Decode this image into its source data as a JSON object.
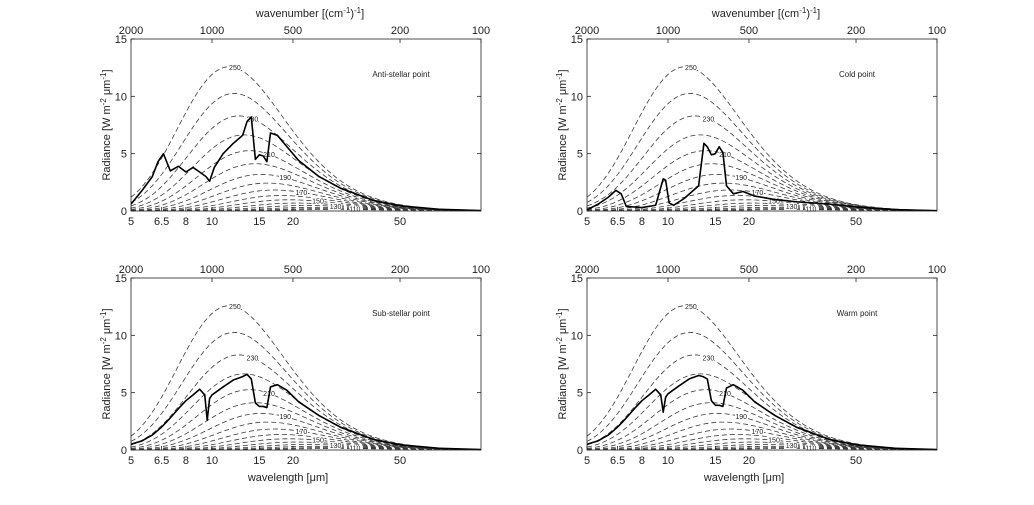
{
  "figure": {
    "colors": {
      "axis": "#222222",
      "bb": "#3a3a3a",
      "spectrum": "#000000"
    },
    "top_axis_label_prefix": "wavenumber [(cm",
    "top_axis_label_sup": "-1",
    "top_axis_label_mid": ")",
    "top_axis_label_sup2": "-1",
    "top_axis_label_suffix": "]",
    "x_axis_label_prefix": "wavelength [",
    "x_axis_label_mu": "μ",
    "x_axis_label_suffix": "m]",
    "y_axis_label_prefix": "Radiance [W m",
    "y_axis_label_sup1": "-2",
    "y_axis_label_mu": " μm",
    "y_axis_label_sup2": "-1",
    "y_axis_label_suffix": "]"
  },
  "chart_data": [
    {
      "type": "line",
      "title": "Anti-stellar point",
      "xscale": "log",
      "xlim": [
        5,
        100
      ],
      "ylim": [
        0,
        15
      ],
      "xticks": [
        5,
        6.5,
        8,
        10,
        15,
        20,
        50
      ],
      "xtick_labels": [
        "5",
        "6.5",
        "8",
        "10",
        "15",
        "20",
        "50"
      ],
      "yticks": [
        0,
        5,
        10,
        15
      ],
      "ytick_labels": [
        "0",
        "5",
        "10",
        "15"
      ],
      "top_ticks_wavenumber": [
        2000,
        1000,
        500,
        200,
        100
      ],
      "top_tick_labels": [
        "2000",
        "1000",
        "500",
        "200",
        "100"
      ],
      "blackbody_temperatures_K": [
        250,
        240,
        230,
        220,
        210,
        200,
        190,
        180,
        170,
        160,
        150,
        140,
        130,
        120,
        110,
        100
      ],
      "blackbody_labels": [
        "250",
        "230",
        "210",
        "190",
        "170",
        "150",
        "130",
        "110"
      ],
      "series": [
        {
          "name": "spectrum",
          "x": [
            5.0,
            5.5,
            6.0,
            6.3,
            6.6,
            7.0,
            7.5,
            8.0,
            8.5,
            9.0,
            9.5,
            9.8,
            10.2,
            11.0,
            12.0,
            13.0,
            13.5,
            14.0,
            14.5,
            15.0,
            15.5,
            16.0,
            16.5,
            17.5,
            19.0,
            21.0,
            25.0,
            30.0,
            40.0,
            50.0,
            70.0,
            100.0
          ],
          "y": [
            0.6,
            1.8,
            3.0,
            4.3,
            5.0,
            3.5,
            3.9,
            3.4,
            3.8,
            3.4,
            3.0,
            2.6,
            3.8,
            5.0,
            5.9,
            6.6,
            7.8,
            8.2,
            4.5,
            4.9,
            4.8,
            4.3,
            6.8,
            6.6,
            5.6,
            4.4,
            3.0,
            2.0,
            0.9,
            0.45,
            0.15,
            0.04
          ]
        }
      ]
    },
    {
      "type": "line",
      "title": "Cold point",
      "xscale": "log",
      "xlim": [
        5,
        100
      ],
      "ylim": [
        0,
        15
      ],
      "xticks": [
        5,
        6.5,
        8,
        10,
        15,
        20,
        50
      ],
      "xtick_labels": [
        "5",
        "6.5",
        "8",
        "10",
        "15",
        "20",
        "50"
      ],
      "yticks": [
        0,
        5,
        10,
        15
      ],
      "ytick_labels": [
        "0",
        "5",
        "10",
        "15"
      ],
      "top_ticks_wavenumber": [
        2000,
        1000,
        500,
        200,
        100
      ],
      "top_tick_labels": [
        "2000",
        "1000",
        "500",
        "200",
        "100"
      ],
      "blackbody_temperatures_K": [
        250,
        240,
        230,
        220,
        210,
        200,
        190,
        180,
        170,
        160,
        150,
        140,
        130,
        120,
        110,
        100
      ],
      "blackbody_labels": [
        "250",
        "230",
        "210",
        "190",
        "170",
        "150",
        "130",
        "110"
      ],
      "series": [
        {
          "name": "spectrum",
          "x": [
            5.0,
            5.5,
            6.0,
            6.4,
            6.7,
            7.0,
            8.0,
            9.0,
            9.6,
            9.8,
            10.1,
            10.5,
            11.5,
            13.0,
            13.6,
            14.0,
            14.5,
            15.0,
            15.5,
            16.0,
            16.5,
            17.5,
            19.0,
            21.0,
            25.0,
            30.0,
            40.0,
            50.0,
            70.0,
            100.0
          ],
          "y": [
            0.1,
            0.6,
            1.2,
            1.8,
            1.5,
            0.4,
            0.3,
            0.5,
            2.8,
            2.7,
            0.7,
            0.5,
            1.1,
            2.2,
            5.9,
            5.6,
            4.9,
            5.0,
            5.6,
            5.1,
            2.2,
            1.5,
            1.7,
            1.3,
            1.0,
            0.8,
            0.6,
            0.35,
            0.12,
            0.03
          ]
        }
      ]
    },
    {
      "type": "line",
      "title": "Sub-stellar point",
      "xscale": "log",
      "xlim": [
        5,
        100
      ],
      "ylim": [
        0,
        15
      ],
      "xticks": [
        5,
        6.5,
        8,
        10,
        15,
        20,
        50
      ],
      "xtick_labels": [
        "5",
        "6.5",
        "8",
        "10",
        "15",
        "20",
        "50"
      ],
      "yticks": [
        0,
        5,
        10,
        15
      ],
      "ytick_labels": [
        "0",
        "5",
        "10",
        "15"
      ],
      "top_ticks_wavenumber": [
        2000,
        1000,
        500,
        200,
        100
      ],
      "top_tick_labels": [
        "2000",
        "1000",
        "500",
        "200",
        "100"
      ],
      "blackbody_temperatures_K": [
        250,
        240,
        230,
        220,
        210,
        200,
        190,
        180,
        170,
        160,
        150,
        140,
        130,
        120,
        110,
        100
      ],
      "blackbody_labels": [
        "250",
        "230",
        "210",
        "190",
        "170",
        "150",
        "130",
        "110"
      ],
      "series": [
        {
          "name": "spectrum",
          "x": [
            5.0,
            5.5,
            6.0,
            6.5,
            7.0,
            7.5,
            8.0,
            8.5,
            9.0,
            9.4,
            9.6,
            9.8,
            10.0,
            11.0,
            12.0,
            13.0,
            13.5,
            14.0,
            14.5,
            15.0,
            15.5,
            16.0,
            16.5,
            17.5,
            19.0,
            21.0,
            25.0,
            30.0,
            40.0,
            50.0,
            70.0,
            100.0
          ],
          "y": [
            0.5,
            0.8,
            1.3,
            2.0,
            2.8,
            3.6,
            4.3,
            4.8,
            5.3,
            4.8,
            2.6,
            4.5,
            4.8,
            5.5,
            6.1,
            6.4,
            6.6,
            6.2,
            4.1,
            3.8,
            3.8,
            3.7,
            5.5,
            5.7,
            5.2,
            4.2,
            3.0,
            2.0,
            0.9,
            0.45,
            0.15,
            0.04
          ]
        }
      ]
    },
    {
      "type": "line",
      "title": "Warm point",
      "xscale": "log",
      "xlim": [
        5,
        100
      ],
      "ylim": [
        0,
        15
      ],
      "xticks": [
        5,
        6.5,
        8,
        10,
        15,
        20,
        50
      ],
      "xtick_labels": [
        "5",
        "6.5",
        "8",
        "10",
        "15",
        "20",
        "50"
      ],
      "yticks": [
        0,
        5,
        10,
        15
      ],
      "ytick_labels": [
        "0",
        "5",
        "10",
        "15"
      ],
      "top_ticks_wavenumber": [
        2000,
        1000,
        500,
        200,
        100
      ],
      "top_tick_labels": [
        "2000",
        "1000",
        "500",
        "200",
        "100"
      ],
      "blackbody_temperatures_K": [
        250,
        240,
        230,
        220,
        210,
        200,
        190,
        180,
        170,
        160,
        150,
        140,
        130,
        120,
        110,
        100
      ],
      "blackbody_labels": [
        "250",
        "230",
        "210",
        "190",
        "170",
        "150",
        "130",
        "110"
      ],
      "series": [
        {
          "name": "spectrum",
          "x": [
            5.0,
            5.5,
            6.0,
            6.5,
            7.0,
            7.5,
            8.0,
            8.5,
            9.0,
            9.4,
            9.6,
            9.8,
            10.0,
            11.0,
            12.0,
            13.0,
            13.5,
            14.0,
            14.5,
            15.0,
            15.5,
            16.0,
            16.5,
            17.5,
            19.0,
            21.0,
            25.0,
            30.0,
            40.0,
            50.0,
            70.0,
            100.0
          ],
          "y": [
            0.5,
            0.8,
            1.3,
            2.0,
            2.8,
            3.6,
            4.3,
            4.8,
            5.3,
            4.8,
            3.3,
            4.6,
            4.9,
            5.6,
            6.2,
            6.5,
            6.4,
            6.2,
            4.3,
            3.9,
            3.9,
            3.8,
            5.4,
            5.7,
            5.2,
            4.2,
            3.0,
            2.0,
            0.9,
            0.45,
            0.15,
            0.04
          ]
        }
      ]
    }
  ]
}
